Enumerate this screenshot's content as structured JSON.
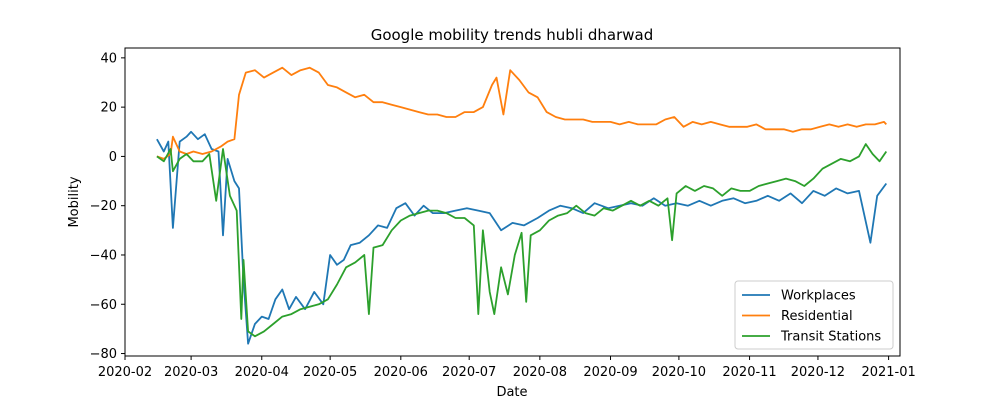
{
  "chart_data": {
    "type": "line",
    "title": "Google mobility trends hubli dharwad",
    "xlabel": "Date",
    "ylabel": "Mobility",
    "xlim": [
      "2020-02-01",
      "2021-01-06"
    ],
    "ylim": [
      -81,
      44
    ],
    "xticks": [
      "2020-02",
      "2020-03",
      "2020-04",
      "2020-05",
      "2020-06",
      "2020-07",
      "2020-08",
      "2020-09",
      "2020-10",
      "2020-11",
      "2020-12",
      "2021-01"
    ],
    "yticks": [
      -80,
      -60,
      -40,
      -20,
      0,
      20,
      40
    ],
    "grid": false,
    "legend": "lower-right",
    "series": [
      {
        "name": "Workplaces",
        "color": "#1f77b4",
        "points": [
          [
            "2020-02-15",
            7
          ],
          [
            "2020-02-18",
            2
          ],
          [
            "2020-02-20",
            6
          ],
          [
            "2020-02-22",
            -29
          ],
          [
            "2020-02-25",
            6
          ],
          [
            "2020-02-28",
            8
          ],
          [
            "2020-03-01",
            10
          ],
          [
            "2020-03-04",
            7
          ],
          [
            "2020-03-07",
            9
          ],
          [
            "2020-03-10",
            3
          ],
          [
            "2020-03-13",
            2
          ],
          [
            "2020-03-15",
            -32
          ],
          [
            "2020-03-17",
            -1
          ],
          [
            "2020-03-20",
            -10
          ],
          [
            "2020-03-22",
            -13
          ],
          [
            "2020-03-24",
            -50
          ],
          [
            "2020-03-26",
            -76
          ],
          [
            "2020-03-29",
            -68
          ],
          [
            "2020-04-01",
            -65
          ],
          [
            "2020-04-04",
            -66
          ],
          [
            "2020-04-07",
            -58
          ],
          [
            "2020-04-10",
            -54
          ],
          [
            "2020-04-13",
            -62
          ],
          [
            "2020-04-16",
            -57
          ],
          [
            "2020-04-20",
            -62
          ],
          [
            "2020-04-24",
            -55
          ],
          [
            "2020-04-28",
            -60
          ],
          [
            "2020-05-01",
            -40
          ],
          [
            "2020-05-04",
            -44
          ],
          [
            "2020-05-07",
            -42
          ],
          [
            "2020-05-10",
            -36
          ],
          [
            "2020-05-14",
            -35
          ],
          [
            "2020-05-18",
            -32
          ],
          [
            "2020-05-22",
            -28
          ],
          [
            "2020-05-26",
            -29
          ],
          [
            "2020-05-30",
            -21
          ],
          [
            "2020-06-03",
            -19
          ],
          [
            "2020-06-07",
            -24
          ],
          [
            "2020-06-11",
            -20
          ],
          [
            "2020-06-15",
            -23
          ],
          [
            "2020-06-20",
            -23
          ],
          [
            "2020-06-25",
            -22
          ],
          [
            "2020-06-30",
            -21
          ],
          [
            "2020-07-05",
            -22
          ],
          [
            "2020-07-10",
            -23
          ],
          [
            "2020-07-15",
            -30
          ],
          [
            "2020-07-20",
            -27
          ],
          [
            "2020-07-25",
            -28
          ],
          [
            "2020-07-31",
            -25
          ],
          [
            "2020-08-05",
            -22
          ],
          [
            "2020-08-10",
            -20
          ],
          [
            "2020-08-15",
            -21
          ],
          [
            "2020-08-20",
            -23
          ],
          [
            "2020-08-25",
            -19
          ],
          [
            "2020-08-31",
            -21
          ],
          [
            "2020-09-05",
            -20
          ],
          [
            "2020-09-10",
            -19
          ],
          [
            "2020-09-15",
            -20
          ],
          [
            "2020-09-20",
            -17
          ],
          [
            "2020-09-25",
            -20
          ],
          [
            "2020-09-30",
            -19
          ],
          [
            "2020-10-05",
            -20
          ],
          [
            "2020-10-10",
            -18
          ],
          [
            "2020-10-15",
            -20
          ],
          [
            "2020-10-20",
            -18
          ],
          [
            "2020-10-25",
            -17
          ],
          [
            "2020-10-30",
            -19
          ],
          [
            "2020-11-04",
            -18
          ],
          [
            "2020-11-09",
            -16
          ],
          [
            "2020-11-14",
            -18
          ],
          [
            "2020-11-19",
            -15
          ],
          [
            "2020-11-24",
            -19
          ],
          [
            "2020-11-29",
            -14
          ],
          [
            "2020-12-04",
            -16
          ],
          [
            "2020-12-09",
            -13
          ],
          [
            "2020-12-14",
            -15
          ],
          [
            "2020-12-19",
            -14
          ],
          [
            "2020-12-24",
            -35
          ],
          [
            "2020-12-27",
            -16
          ],
          [
            "2020-12-31",
            -11
          ]
        ]
      },
      {
        "name": "Residential",
        "color": "#ff7f0e",
        "points": [
          [
            "2020-02-15",
            0
          ],
          [
            "2020-02-18",
            -1
          ],
          [
            "2020-02-21",
            1
          ],
          [
            "2020-02-22",
            8
          ],
          [
            "2020-02-25",
            2
          ],
          [
            "2020-02-28",
            1
          ],
          [
            "2020-03-02",
            2
          ],
          [
            "2020-03-06",
            1
          ],
          [
            "2020-03-10",
            2
          ],
          [
            "2020-03-14",
            4
          ],
          [
            "2020-03-17",
            6
          ],
          [
            "2020-03-20",
            7
          ],
          [
            "2020-03-22",
            25
          ],
          [
            "2020-03-25",
            34
          ],
          [
            "2020-03-29",
            35
          ],
          [
            "2020-04-02",
            32
          ],
          [
            "2020-04-06",
            34
          ],
          [
            "2020-04-10",
            36
          ],
          [
            "2020-04-14",
            33
          ],
          [
            "2020-04-18",
            35
          ],
          [
            "2020-04-22",
            36
          ],
          [
            "2020-04-26",
            34
          ],
          [
            "2020-04-30",
            29
          ],
          [
            "2020-05-04",
            28
          ],
          [
            "2020-05-08",
            26
          ],
          [
            "2020-05-12",
            24
          ],
          [
            "2020-05-16",
            25
          ],
          [
            "2020-05-20",
            22
          ],
          [
            "2020-05-24",
            22
          ],
          [
            "2020-05-28",
            21
          ],
          [
            "2020-06-01",
            20
          ],
          [
            "2020-06-05",
            19
          ],
          [
            "2020-06-09",
            18
          ],
          [
            "2020-06-13",
            17
          ],
          [
            "2020-06-17",
            17
          ],
          [
            "2020-06-21",
            16
          ],
          [
            "2020-06-25",
            16
          ],
          [
            "2020-06-29",
            18
          ],
          [
            "2020-07-03",
            18
          ],
          [
            "2020-07-07",
            20
          ],
          [
            "2020-07-11",
            29
          ],
          [
            "2020-07-13",
            32
          ],
          [
            "2020-07-16",
            17
          ],
          [
            "2020-07-19",
            35
          ],
          [
            "2020-07-23",
            31
          ],
          [
            "2020-07-27",
            26
          ],
          [
            "2020-07-31",
            24
          ],
          [
            "2020-08-04",
            18
          ],
          [
            "2020-08-08",
            16
          ],
          [
            "2020-08-12",
            15
          ],
          [
            "2020-08-16",
            15
          ],
          [
            "2020-08-20",
            15
          ],
          [
            "2020-08-24",
            14
          ],
          [
            "2020-08-28",
            14
          ],
          [
            "2020-09-01",
            14
          ],
          [
            "2020-09-05",
            13
          ],
          [
            "2020-09-09",
            14
          ],
          [
            "2020-09-13",
            13
          ],
          [
            "2020-09-17",
            13
          ],
          [
            "2020-09-21",
            13
          ],
          [
            "2020-09-25",
            15
          ],
          [
            "2020-09-29",
            16
          ],
          [
            "2020-10-03",
            12
          ],
          [
            "2020-10-07",
            14
          ],
          [
            "2020-10-11",
            13
          ],
          [
            "2020-10-15",
            14
          ],
          [
            "2020-10-19",
            13
          ],
          [
            "2020-10-23",
            12
          ],
          [
            "2020-10-27",
            12
          ],
          [
            "2020-10-31",
            12
          ],
          [
            "2020-11-04",
            13
          ],
          [
            "2020-11-08",
            11
          ],
          [
            "2020-11-12",
            11
          ],
          [
            "2020-11-16",
            11
          ],
          [
            "2020-11-20",
            10
          ],
          [
            "2020-11-24",
            11
          ],
          [
            "2020-11-28",
            11
          ],
          [
            "2020-12-02",
            12
          ],
          [
            "2020-12-06",
            13
          ],
          [
            "2020-12-10",
            12
          ],
          [
            "2020-12-14",
            13
          ],
          [
            "2020-12-18",
            12
          ],
          [
            "2020-12-22",
            13
          ],
          [
            "2020-12-26",
            13
          ],
          [
            "2020-12-30",
            14
          ],
          [
            "2020-12-31",
            13
          ]
        ]
      },
      {
        "name": "Transit Stations",
        "color": "#2ca02c",
        "points": [
          [
            "2020-02-15",
            0
          ],
          [
            "2020-02-18",
            -2
          ],
          [
            "2020-02-21",
            3
          ],
          [
            "2020-02-22",
            -6
          ],
          [
            "2020-02-25",
            -1
          ],
          [
            "2020-02-28",
            1
          ],
          [
            "2020-03-02",
            -2
          ],
          [
            "2020-03-06",
            -2
          ],
          [
            "2020-03-09",
            1
          ],
          [
            "2020-03-12",
            -18
          ],
          [
            "2020-03-15",
            3
          ],
          [
            "2020-03-18",
            -16
          ],
          [
            "2020-03-21",
            -22
          ],
          [
            "2020-03-23",
            -66
          ],
          [
            "2020-03-24",
            -42
          ],
          [
            "2020-03-26",
            -71
          ],
          [
            "2020-03-29",
            -73
          ],
          [
            "2020-04-02",
            -71
          ],
          [
            "2020-04-06",
            -68
          ],
          [
            "2020-04-10",
            -65
          ],
          [
            "2020-04-14",
            -64
          ],
          [
            "2020-04-18",
            -62
          ],
          [
            "2020-04-22",
            -61
          ],
          [
            "2020-04-26",
            -60
          ],
          [
            "2020-04-30",
            -58
          ],
          [
            "2020-05-04",
            -52
          ],
          [
            "2020-05-08",
            -45
          ],
          [
            "2020-05-12",
            -43
          ],
          [
            "2020-05-16",
            -40
          ],
          [
            "2020-05-18",
            -64
          ],
          [
            "2020-05-20",
            -37
          ],
          [
            "2020-05-24",
            -36
          ],
          [
            "2020-05-28",
            -30
          ],
          [
            "2020-06-01",
            -26
          ],
          [
            "2020-06-05",
            -24
          ],
          [
            "2020-06-09",
            -23
          ],
          [
            "2020-06-13",
            -22
          ],
          [
            "2020-06-17",
            -22
          ],
          [
            "2020-06-21",
            -23
          ],
          [
            "2020-06-25",
            -25
          ],
          [
            "2020-06-29",
            -25
          ],
          [
            "2020-07-03",
            -28
          ],
          [
            "2020-07-05",
            -64
          ],
          [
            "2020-07-07",
            -30
          ],
          [
            "2020-07-10",
            -55
          ],
          [
            "2020-07-12",
            -64
          ],
          [
            "2020-07-15",
            -45
          ],
          [
            "2020-07-18",
            -56
          ],
          [
            "2020-07-21",
            -40
          ],
          [
            "2020-07-24",
            -31
          ],
          [
            "2020-07-26",
            -59
          ],
          [
            "2020-07-28",
            -32
          ],
          [
            "2020-08-01",
            -30
          ],
          [
            "2020-08-05",
            -26
          ],
          [
            "2020-08-09",
            -24
          ],
          [
            "2020-08-13",
            -23
          ],
          [
            "2020-08-17",
            -20
          ],
          [
            "2020-08-21",
            -23
          ],
          [
            "2020-08-25",
            -24
          ],
          [
            "2020-08-29",
            -21
          ],
          [
            "2020-09-02",
            -22
          ],
          [
            "2020-09-06",
            -20
          ],
          [
            "2020-09-10",
            -18
          ],
          [
            "2020-09-14",
            -20
          ],
          [
            "2020-09-18",
            -18
          ],
          [
            "2020-09-22",
            -20
          ],
          [
            "2020-09-26",
            -17
          ],
          [
            "2020-09-28",
            -34
          ],
          [
            "2020-09-30",
            -15
          ],
          [
            "2020-10-04",
            -12
          ],
          [
            "2020-10-08",
            -14
          ],
          [
            "2020-10-12",
            -12
          ],
          [
            "2020-10-16",
            -13
          ],
          [
            "2020-10-20",
            -16
          ],
          [
            "2020-10-24",
            -13
          ],
          [
            "2020-10-28",
            -14
          ],
          [
            "2020-11-01",
            -14
          ],
          [
            "2020-11-05",
            -12
          ],
          [
            "2020-11-09",
            -11
          ],
          [
            "2020-11-13",
            -10
          ],
          [
            "2020-11-17",
            -9
          ],
          [
            "2020-11-21",
            -10
          ],
          [
            "2020-11-25",
            -12
          ],
          [
            "2020-11-29",
            -9
          ],
          [
            "2020-12-03",
            -5
          ],
          [
            "2020-12-07",
            -3
          ],
          [
            "2020-12-11",
            -1
          ],
          [
            "2020-12-15",
            -2
          ],
          [
            "2020-12-19",
            0
          ],
          [
            "2020-12-22",
            5
          ],
          [
            "2020-12-25",
            1
          ],
          [
            "2020-12-28",
            -2
          ],
          [
            "2020-12-31",
            2
          ]
        ]
      }
    ]
  }
}
